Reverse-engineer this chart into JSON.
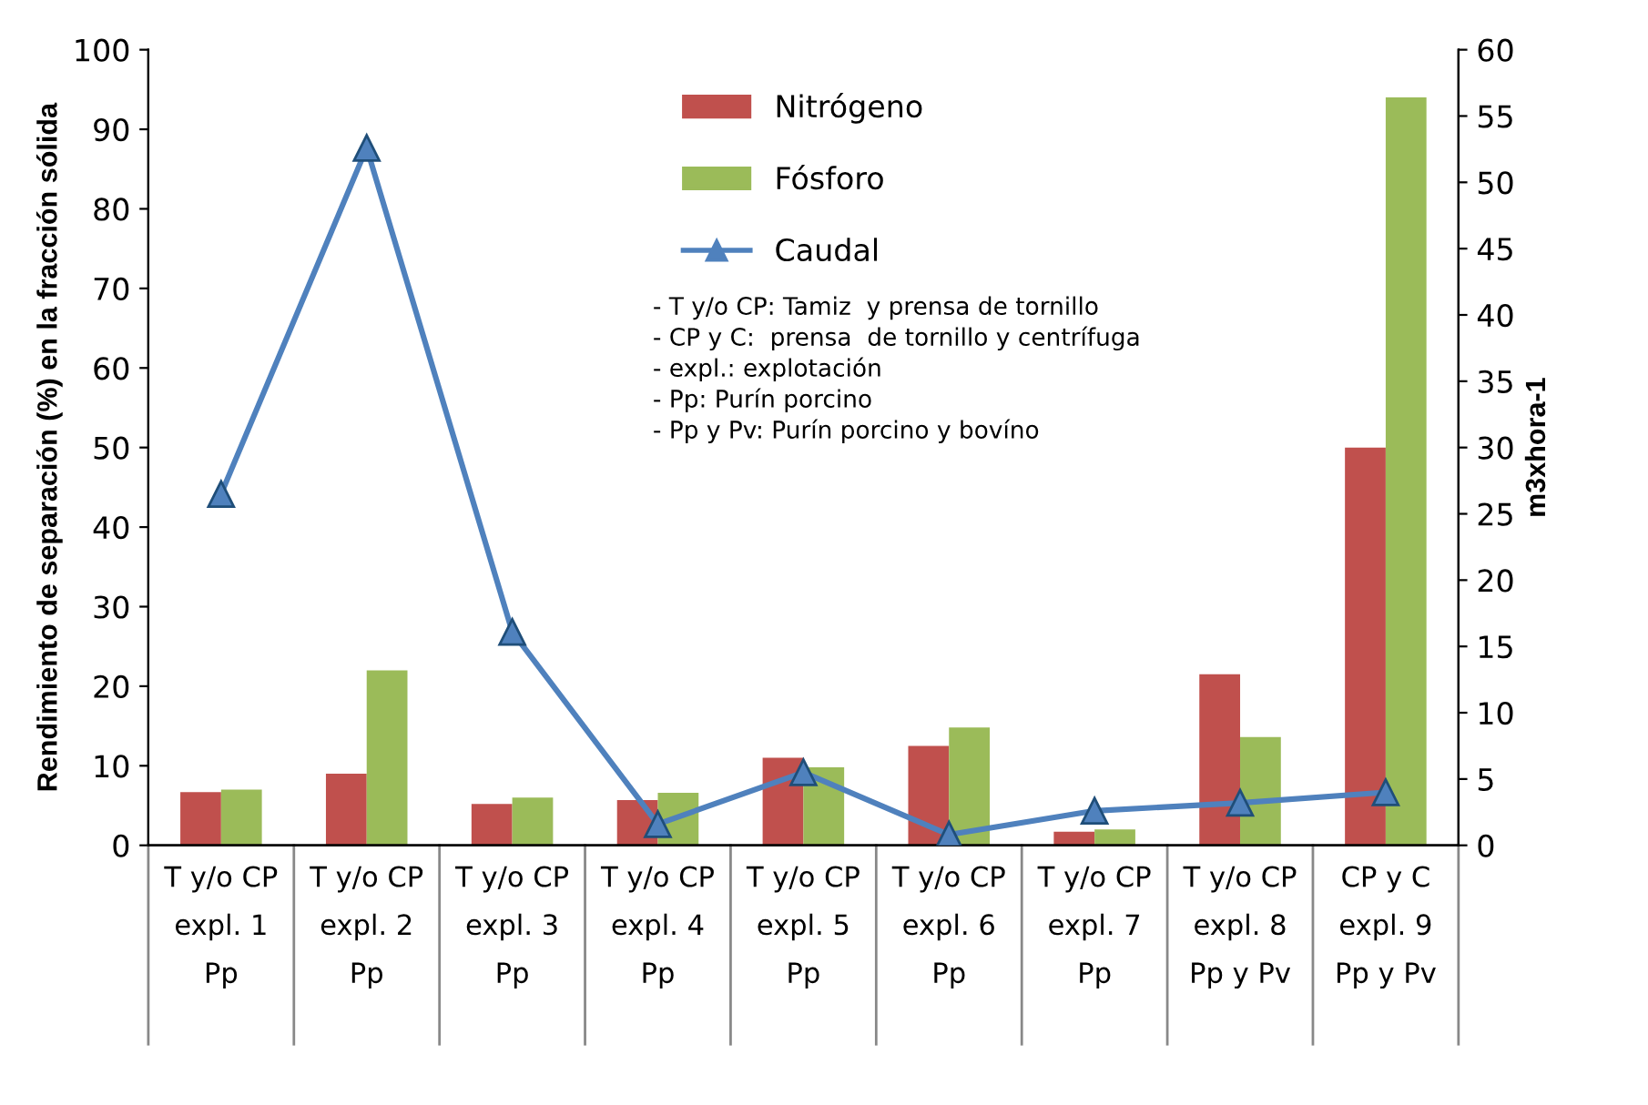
{
  "chart_data": {
    "type": "bar",
    "categories": [
      "T y/o CP\nexpl. 1\nPp",
      "T y/o CP\nexpl. 2\nPp",
      "T y/o CP\nexpl. 3\nPp",
      "T y/o CP\nexpl. 4\nPp",
      "T y/o CP\nexpl. 5\nPp",
      "T y/o CP\nexpl. 6\nPp",
      "T y/o CP\nexpl. 7\nPp",
      "T y/o CP\nexpl. 8\nPp y Pv",
      "CP y C\nexpl. 9\nPp y Pv"
    ],
    "series": [
      {
        "name": "Nitrógeno",
        "color": "#c0504d",
        "values": [
          6.7,
          9,
          5.2,
          5.7,
          11,
          12.5,
          1.7,
          21.5,
          50
        ]
      },
      {
        "name": "Fósforo",
        "color": "#9bbb59",
        "values": [
          7,
          22,
          6,
          6.6,
          9.8,
          14.8,
          2,
          13.6,
          94
        ]
      },
      {
        "name": "Caudal",
        "type": "line",
        "axis": "y2",
        "color": "#4f81bd",
        "marker": "triangle",
        "values": [
          26.5,
          52.6,
          16.1,
          1.6,
          5.5,
          0.8,
          2.6,
          3.2,
          4.0
        ]
      }
    ],
    "ylabel": "Rendimiento de separación (%) en la fracción sólida",
    "y2label": "m3xhora-1",
    "ylim": [
      0,
      100
    ],
    "yticks": [
      0,
      10,
      20,
      30,
      40,
      50,
      60,
      70,
      80,
      90,
      100
    ],
    "y2lim": [
      0,
      60
    ],
    "y2ticks": [
      0,
      5,
      10,
      15,
      20,
      25,
      30,
      35,
      40,
      45,
      50,
      55,
      60
    ],
    "legend": "top",
    "annotations": [
      "- T y/o CP: Tamiz  y prensa de tornillo\n- CP y C:  prensa  de tornillo y centrífuga\n- expl.: explotación\n- Pp: Purín porcino\n- Pp y Pv: Purín porcino y bovíno"
    ],
    "grid": false
  }
}
